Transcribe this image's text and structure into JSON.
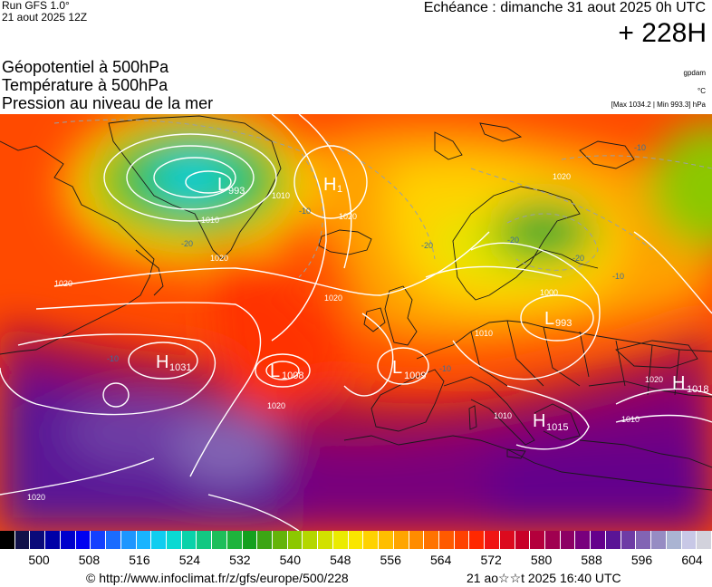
{
  "header": {
    "run": "Run GFS 1.0°",
    "run_date": "21 aout 2025 12Z",
    "echeance": "Echéance : dimanche 31 aout 2025 0h UTC",
    "range": "+ 228H",
    "lines": [
      "Géopotentiel à 500hPa",
      "Température à 500hPa",
      "Pression au niveau de la mer"
    ],
    "unit_geo": "gpdam",
    "unit_temp": "°C",
    "maxmin": "[Max 1034.2 | Min 993.3] hPa"
  },
  "map": {
    "centers": [
      {
        "type": "L",
        "value": "993"
      },
      {
        "type": "H",
        "value": "1"
      },
      {
        "type": "H",
        "value": "1031"
      },
      {
        "type": "L",
        "value": "1008"
      },
      {
        "type": "L",
        "value": "993"
      },
      {
        "type": "L",
        "value": "1009"
      },
      {
        "type": "H",
        "value": "1015"
      },
      {
        "type": "H",
        "value": "1018"
      }
    ],
    "isobar_labels": [
      "1010",
      "1010",
      "1020",
      "1020",
      "1020",
      "1020",
      "1020",
      "1020",
      "1000",
      "1010",
      "1010",
      "1010",
      "1020",
      "1020"
    ],
    "temp_labels": [
      "-20",
      "-20",
      "-20",
      "-20",
      "-10",
      "-10",
      "-10",
      "-10",
      "-10"
    ]
  },
  "colorbar": {
    "colors": [
      "#000000",
      "#12124a",
      "#0a0a7a",
      "#0000a6",
      "#0000cc",
      "#0000f0",
      "#1440ff",
      "#1a6cff",
      "#1e96ff",
      "#19b4ff",
      "#10cdf0",
      "#0ad9d2",
      "#0ad2aa",
      "#12c882",
      "#1ebe5a",
      "#1eb43c",
      "#14a01e",
      "#3ca514",
      "#64b40a",
      "#8cc800",
      "#b4d700",
      "#d2e100",
      "#ebeb00",
      "#fae600",
      "#ffd200",
      "#ffbe00",
      "#ffa500",
      "#ff8c00",
      "#ff7300",
      "#ff5a00",
      "#ff4100",
      "#ff2800",
      "#f01414",
      "#dc0a1e",
      "#c80028",
      "#b4003c",
      "#a00050",
      "#8c0064",
      "#78007d",
      "#64008c",
      "#5a1496",
      "#6e3ca5",
      "#8264b4",
      "#968cc3",
      "#aab4d2",
      "#c8c8e6",
      "#d2d2dc"
    ],
    "ticks": [
      "500",
      "508",
      "516",
      "524",
      "532",
      "540",
      "548",
      "556",
      "564",
      "572",
      "580",
      "588",
      "596",
      "604"
    ]
  },
  "footer": {
    "url": "© http://www.infoclimat.fr/z/gfs/europe/500/228",
    "generated": "21 ao☆☆t 2025 16:40 UTC"
  }
}
